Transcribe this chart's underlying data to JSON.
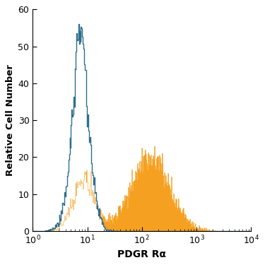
{
  "title": "",
  "xlabel": "PDGR Rα",
  "ylabel": "Relative Cell Number",
  "xlim_log": [
    1,
    10000
  ],
  "ylim": [
    0,
    60
  ],
  "yticks": [
    0,
    10,
    20,
    30,
    40,
    50,
    60
  ],
  "blue_color": "#2e6e8e",
  "orange_color": "#f5a020",
  "background_color": "#ffffff"
}
